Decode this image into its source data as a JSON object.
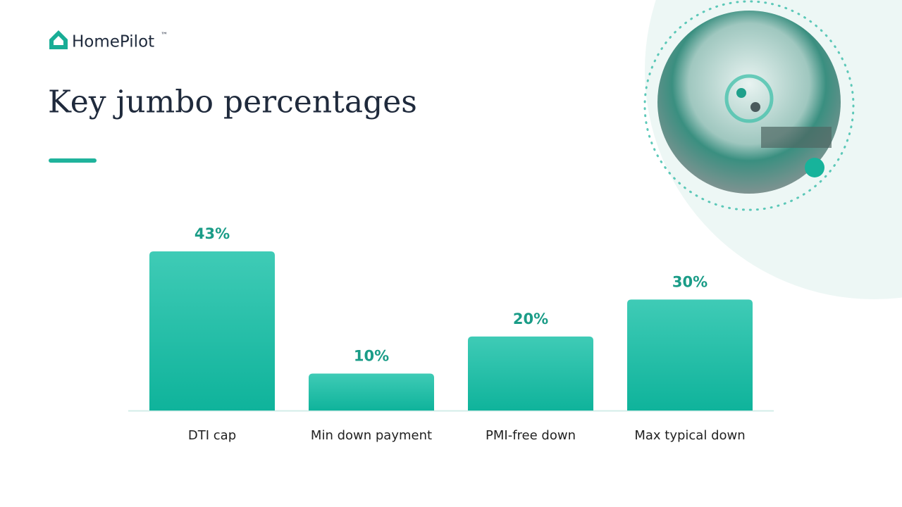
{
  "brand": {
    "name": "HomePilot",
    "mark": "™"
  },
  "chart_data": {
    "type": "bar",
    "title": "Key jumbo percentages",
    "categories": [
      "DTI cap",
      "Min down payment",
      "PMI-free down",
      "Max typical down"
    ],
    "values": [
      43,
      10,
      20,
      30
    ],
    "value_labels": [
      "43%",
      "10%",
      "20%",
      "30%"
    ],
    "color": "#1ab9a2"
  }
}
